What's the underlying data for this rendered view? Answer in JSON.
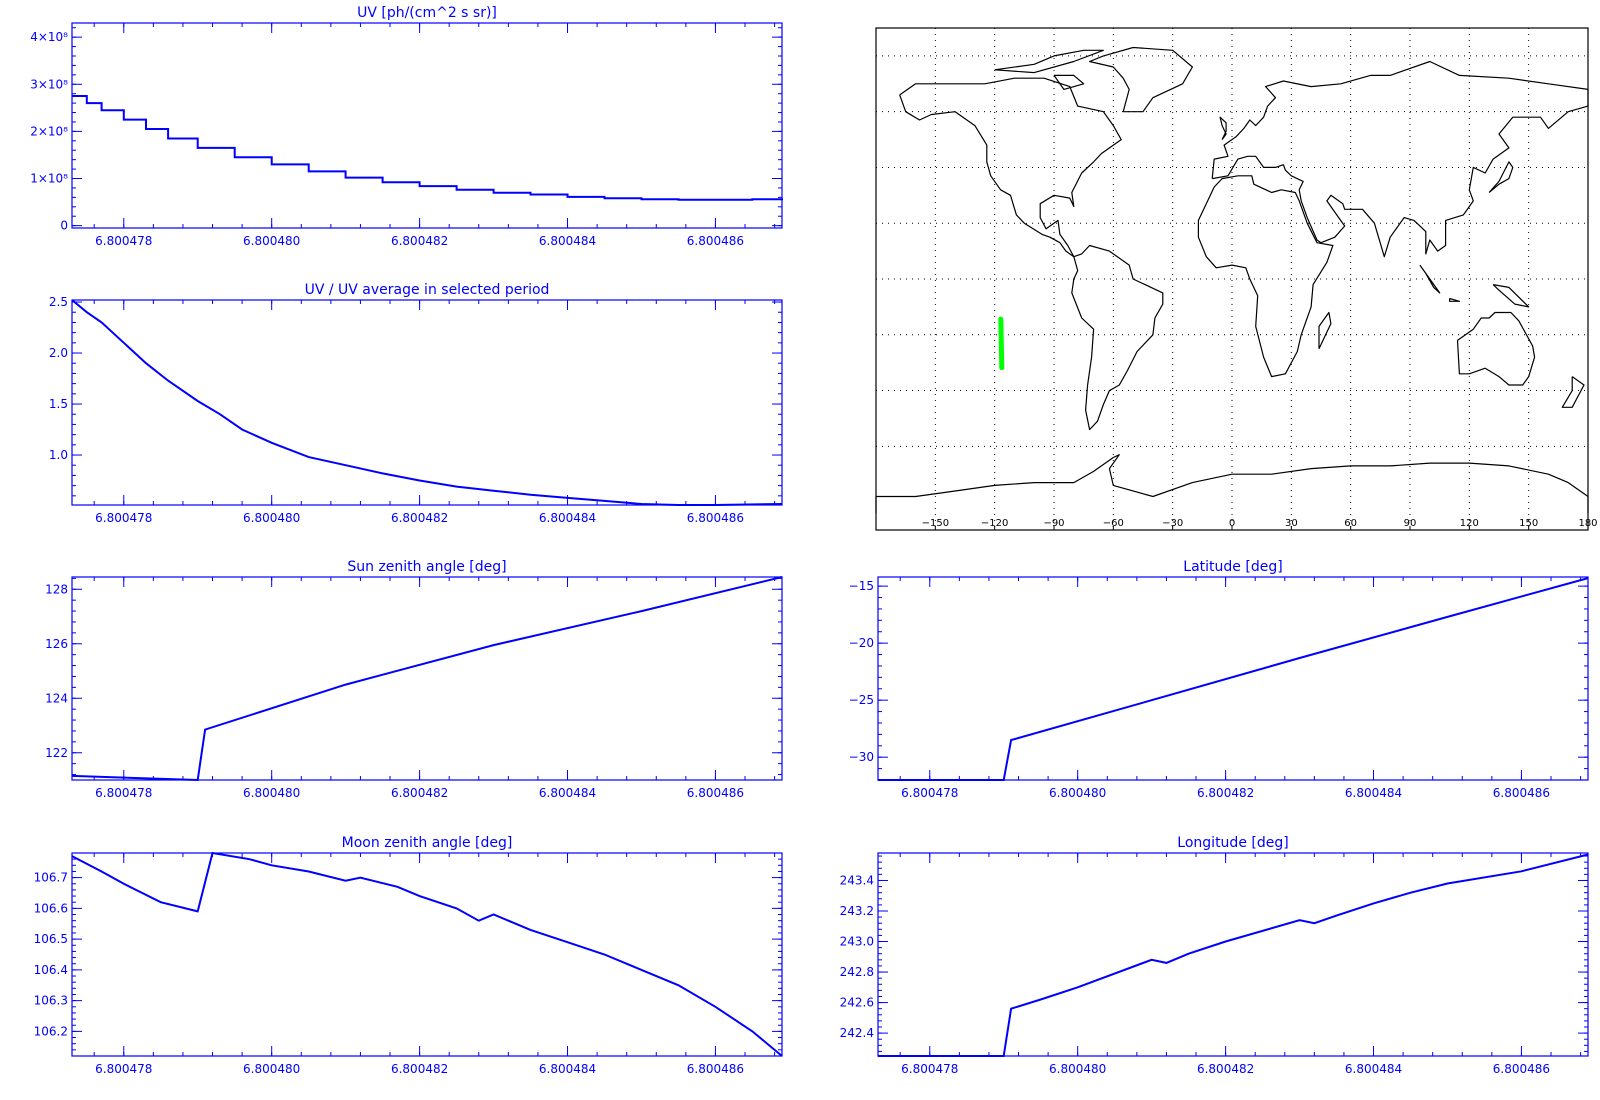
{
  "style": {
    "axis_color": "#0000ff",
    "line_color": "#0000ff",
    "map_color": "#000000",
    "track_color": "#00ff00"
  },
  "chart_data": [
    {
      "id": "uv",
      "type": "line",
      "step": true,
      "title": "UV [ph/(cm^2 s sr)]",
      "xlim": [
        6.8004773,
        6.8004869
      ],
      "ylim": [
        -5000000.0,
        430000000.0
      ],
      "xticks": [
        6.800478,
        6.80048,
        6.800482,
        6.800484,
        6.800486
      ],
      "xtick_labels": [
        "6.800478",
        "6.800480",
        "6.800482",
        "6.800484",
        "6.800486"
      ],
      "yticks": [
        0,
        100000000.0,
        200000000.0,
        300000000.0,
        400000000.0
      ],
      "ytick_labels": [
        "0",
        "1×10⁸",
        "2×10⁸",
        "3×10⁸",
        "4×10⁸"
      ],
      "x": [
        6.8004773,
        6.8004775,
        6.8004777,
        6.800478,
        6.8004783,
        6.8004786,
        6.800479,
        6.8004795,
        6.80048,
        6.8004805,
        6.800481,
        6.8004815,
        6.800482,
        6.8004825,
        6.800483,
        6.8004835,
        6.800484,
        6.8004845,
        6.800485,
        6.8004855,
        6.800486,
        6.8004865,
        6.8004869
      ],
      "y": [
        275000000.0,
        260000000.0,
        245000000.0,
        225000000.0,
        205000000.0,
        185000000.0,
        165000000.0,
        145000000.0,
        130000000.0,
        115000000.0,
        102000000.0,
        92000000.0,
        84000000.0,
        76000000.0,
        70000000.0,
        66000000.0,
        61000000.0,
        58000000.0,
        56000000.0,
        55000000.0,
        55000000.0,
        56000000.0,
        58000000.0
      ]
    },
    {
      "id": "uv_ratio",
      "type": "line",
      "title": "UV / UV average in selected period",
      "xlim": [
        6.8004773,
        6.8004869
      ],
      "ylim": [
        0.51,
        2.52
      ],
      "xticks": [
        6.800478,
        6.80048,
        6.800482,
        6.800484,
        6.800486
      ],
      "xtick_labels": [
        "6.800478",
        "6.800480",
        "6.800482",
        "6.800484",
        "6.800486"
      ],
      "yticks": [
        1.0,
        1.5,
        2.0,
        2.5
      ],
      "ytick_labels": [
        "1.0",
        "1.5",
        "2.0",
        "2.5"
      ],
      "x": [
        6.8004773,
        6.8004775,
        6.8004777,
        6.800478,
        6.8004783,
        6.8004786,
        6.800479,
        6.8004793,
        6.8004796,
        6.80048,
        6.8004805,
        6.800481,
        6.8004815,
        6.800482,
        6.8004825,
        6.800483,
        6.8004835,
        6.800484,
        6.8004845,
        6.800485,
        6.8004855,
        6.800486,
        6.8004869
      ],
      "y": [
        2.52,
        2.4,
        2.3,
        2.1,
        1.9,
        1.73,
        1.53,
        1.4,
        1.25,
        1.12,
        0.98,
        0.9,
        0.82,
        0.75,
        0.69,
        0.65,
        0.61,
        0.58,
        0.55,
        0.52,
        0.51,
        0.51,
        0.52
      ]
    },
    {
      "id": "sza",
      "type": "line",
      "title": "Sun zenith angle [deg]",
      "xlim": [
        6.8004773,
        6.8004869
      ],
      "ylim": [
        121.0,
        128.45
      ],
      "xticks": [
        6.800478,
        6.80048,
        6.800482,
        6.800484,
        6.800486
      ],
      "xtick_labels": [
        "6.800478",
        "6.800480",
        "6.800482",
        "6.800484",
        "6.800486"
      ],
      "yticks": [
        122,
        124,
        126,
        128
      ],
      "ytick_labels": [
        "122",
        "124",
        "126",
        "128"
      ],
      "x": [
        6.8004773,
        6.800479,
        6.8004791,
        6.800481,
        6.800483,
        6.800485,
        6.8004869
      ],
      "y": [
        121.15,
        121.0,
        122.85,
        124.5,
        125.95,
        127.2,
        128.45
      ]
    },
    {
      "id": "mza",
      "type": "line",
      "title": "Moon zenith angle [deg]",
      "xlim": [
        6.8004773,
        6.8004869
      ],
      "ylim": [
        106.12,
        106.78
      ],
      "xticks": [
        6.800478,
        6.80048,
        6.800482,
        6.800484,
        6.800486
      ],
      "xtick_labels": [
        "6.800478",
        "6.800480",
        "6.800482",
        "6.800484",
        "6.800486"
      ],
      "yticks": [
        106.2,
        106.3,
        106.4,
        106.5,
        106.6,
        106.7
      ],
      "ytick_labels": [
        "106.2",
        "106.3",
        "106.4",
        "106.5",
        "106.6",
        "106.7"
      ],
      "x": [
        6.8004773,
        6.8004777,
        6.800478,
        6.8004785,
        6.800479,
        6.8004792,
        6.8004797,
        6.80048,
        6.8004805,
        6.800481,
        6.8004812,
        6.8004817,
        6.800482,
        6.8004825,
        6.8004828,
        6.800483,
        6.8004835,
        6.800484,
        6.8004845,
        6.800485,
        6.8004855,
        6.800486,
        6.8004865,
        6.8004869
      ],
      "y": [
        106.77,
        106.72,
        106.68,
        106.62,
        106.59,
        106.78,
        106.76,
        106.74,
        106.72,
        106.69,
        106.7,
        106.67,
        106.64,
        106.6,
        106.56,
        106.58,
        106.53,
        106.49,
        106.45,
        106.4,
        106.35,
        106.28,
        106.2,
        106.12
      ]
    },
    {
      "id": "lat",
      "type": "line",
      "title": "Latitude [deg]",
      "xlim": [
        6.8004773,
        6.8004869
      ],
      "ylim": [
        -32.0,
        -14.2
      ],
      "xticks": [
        6.800478,
        6.80048,
        6.800482,
        6.800484,
        6.800486
      ],
      "xtick_labels": [
        "6.800478",
        "6.800480",
        "6.800482",
        "6.800484",
        "6.800486"
      ],
      "yticks": [
        -30,
        -25,
        -20,
        -15
      ],
      "ytick_labels": [
        "−30",
        "−25",
        "−20",
        "−15"
      ],
      "x": [
        6.8004773,
        6.800479,
        6.8004791,
        6.800481,
        6.800483,
        6.800485,
        6.8004869
      ],
      "y": [
        -32.0,
        -32.0,
        -28.5,
        -25.0,
        -21.3,
        -17.7,
        -14.3
      ]
    },
    {
      "id": "lon",
      "type": "line",
      "title": "Longitude [deg]",
      "xlim": [
        6.8004773,
        6.8004869
      ],
      "ylim": [
        242.25,
        243.58
      ],
      "xticks": [
        6.800478,
        6.80048,
        6.800482,
        6.800484,
        6.800486
      ],
      "xtick_labels": [
        "6.800478",
        "6.800480",
        "6.800482",
        "6.800484",
        "6.800486"
      ],
      "yticks": [
        242.4,
        242.6,
        242.8,
        243.0,
        243.2,
        243.4
      ],
      "ytick_labels": [
        "242.4",
        "242.6",
        "242.8",
        "243.0",
        "243.2",
        "243.4"
      ],
      "x": [
        6.8004773,
        6.800479,
        6.8004791,
        6.8004795,
        6.80048,
        6.800481,
        6.8004812,
        6.8004815,
        6.800482,
        6.800483,
        6.8004832,
        6.8004835,
        6.800484,
        6.8004845,
        6.800485,
        6.800486,
        6.8004869
      ],
      "y": [
        242.25,
        242.25,
        242.56,
        242.62,
        242.7,
        242.88,
        242.86,
        242.92,
        243.0,
        243.14,
        243.12,
        243.17,
        243.25,
        243.32,
        243.38,
        243.46,
        243.57
      ]
    },
    {
      "id": "map",
      "type": "map",
      "xlim": [
        -180,
        180
      ],
      "ylim": [
        -90,
        90
      ],
      "xticks": [
        -150,
        -120,
        -90,
        -60,
        -30,
        0,
        30,
        60,
        90,
        120,
        150,
        180
      ],
      "xtick_labels": [
        "−150",
        "−120",
        "−90",
        "−60",
        "−30",
        "0",
        "30",
        "60",
        "90",
        "120",
        "150",
        "180"
      ],
      "grid_lon": [
        -150,
        -120,
        -90,
        -60,
        -30,
        0,
        30,
        60,
        90,
        120,
        150
      ],
      "grid_lat": [
        -60,
        -40,
        -20,
        0,
        20,
        40,
        60,
        80
      ],
      "track": {
        "lon": [
          -116.4,
          -116.9
        ],
        "lat": [
          -31.8,
          -14.4
        ]
      }
    }
  ]
}
